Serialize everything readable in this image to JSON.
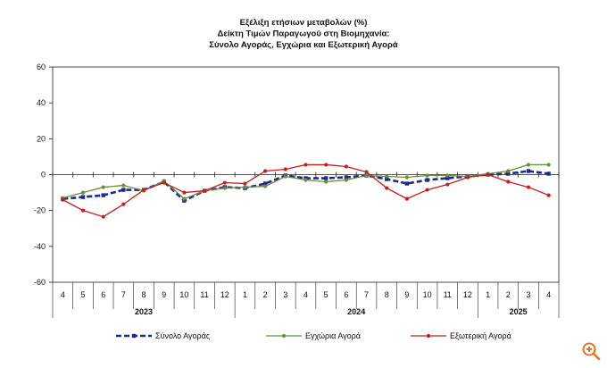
{
  "chart_data": {
    "type": "line",
    "title": [
      "Εξέλιξη ετήσιων μεταβολών (%)",
      "Δείκτη Τιμών Παραγωγού στη Βιομηχανία:",
      "Σύνολο Αγοράς, Εγχώρια και Εξωτερική Αγορά"
    ],
    "x": [
      "4",
      "5",
      "6",
      "7",
      "8",
      "9",
      "10",
      "11",
      "12",
      "1",
      "2",
      "3",
      "4",
      "5",
      "6",
      "7",
      "8",
      "9",
      "10",
      "11",
      "12",
      "1",
      "2",
      "3",
      "4"
    ],
    "year_groups": [
      {
        "label": "2023",
        "count": 9
      },
      {
        "label": "2024",
        "count": 12
      },
      {
        "label": "2025",
        "count": 4
      }
    ],
    "ylim": [
      -60,
      60
    ],
    "yticks": [
      60,
      40,
      20,
      0,
      -20,
      -40,
      -60
    ],
    "grid": false,
    "legend_position": "bottom",
    "series": [
      {
        "name": "Σύνολο Αγοράς",
        "color": "#1f2a8a",
        "style": "dashed",
        "marker": "square",
        "values": [
          -13.5,
          -12.5,
          -11.5,
          -8.5,
          -8.5,
          -4.0,
          -14.5,
          -9.0,
          -7.0,
          -7.5,
          -5.0,
          -0.5,
          -2.0,
          -2.0,
          -1.5,
          -0.5,
          -2.5,
          -5.0,
          -3.0,
          -2.0,
          -1.0,
          0.0,
          0.5,
          2.0,
          0.5
        ]
      },
      {
        "name": "Εγχώρια Αγορά",
        "color": "#6b8e3a",
        "style": "solid",
        "marker": "circle",
        "values": [
          -13.0,
          -10.0,
          -7.0,
          -6.0,
          -9.0,
          -3.5,
          -13.5,
          -9.0,
          -7.5,
          -7.0,
          -6.5,
          -1.0,
          -3.0,
          -4.0,
          -3.0,
          -0.5,
          -1.0,
          -1.5,
          -0.5,
          -0.5,
          -1.0,
          0.5,
          2.0,
          5.5,
          5.5
        ]
      },
      {
        "name": "Εξωτερική Αγορά",
        "color": "#c41e1e",
        "style": "solid",
        "marker": "circle",
        "values": [
          -14.0,
          -20.0,
          -23.5,
          -16.5,
          -8.5,
          -4.5,
          -10.0,
          -9.0,
          -4.5,
          -5.0,
          2.0,
          3.0,
          5.5,
          5.5,
          4.5,
          1.5,
          -7.5,
          -13.5,
          -8.5,
          -5.5,
          -1.5,
          0.0,
          -4.0,
          -7.0,
          -11.5
        ]
      }
    ]
  },
  "ui": {
    "zoom_icon": "zoom-in-icon",
    "zoom_color": "#e8712a"
  }
}
